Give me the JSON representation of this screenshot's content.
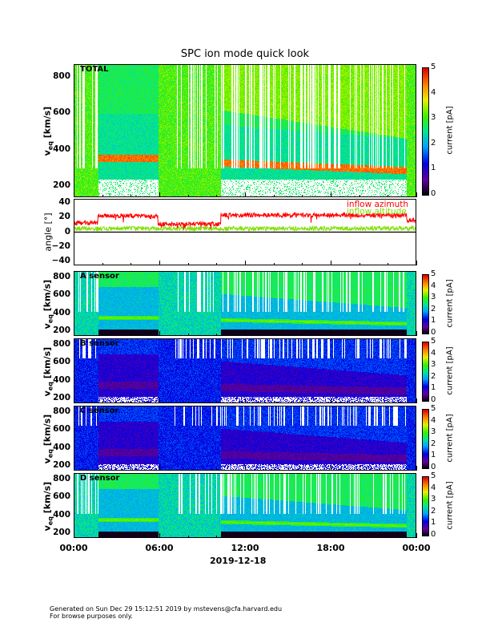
{
  "title": "SPC ion mode quick look",
  "date_label": "2019-12-18",
  "x_ticks": [
    "00:00",
    "06:00",
    "12:00",
    "18:00",
    "00:00"
  ],
  "footer": [
    "Generated on Sun Dec 29 15:12:51 2019 by mstevens@cfa.harvard.edu",
    "For browse purposes only."
  ],
  "colorbar": {
    "label": "current [pA]",
    "ticks": [
      "0",
      "1",
      "2",
      "3",
      "4",
      "5"
    ]
  },
  "chart_data": [
    {
      "type": "heatmap",
      "name": "TOTAL",
      "ylabel": "v_eq [km/s]",
      "ylabel_main": "v",
      "ylabel_sub": "eq",
      "ylabel_unit": "[km/s]",
      "yticks": [
        "200",
        "400",
        "600",
        "800"
      ],
      "ylim": [
        140,
        870
      ],
      "zlim": [
        0,
        5
      ],
      "style": "total"
    },
    {
      "type": "line",
      "name": "angle",
      "ylabel": "angle [°]",
      "yticks": [
        "40",
        "20",
        "0",
        "−20",
        "−40"
      ],
      "ylim": [
        -45,
        45
      ],
      "series": [
        {
          "name": "inflow azimuth",
          "color": "#ff0000",
          "segments": [
            [
              0,
              1.7,
              12
            ],
            [
              1.7,
              5.9,
              22
            ],
            [
              5.9,
              10.3,
              11
            ],
            [
              10.3,
              23.3,
              23
            ],
            [
              23.3,
              24,
              16
            ]
          ]
        },
        {
          "name": "inflow altitude",
          "color": "#80e000",
          "segments": [
            [
              0,
              24,
              5
            ]
          ]
        }
      ]
    },
    {
      "type": "heatmap",
      "name": "A sensor",
      "ylabel": "v_eq [km/s]",
      "yticks": [
        "200",
        "400",
        "600",
        "800"
      ],
      "ylim": [
        150,
        870
      ],
      "zlim": [
        0,
        5
      ],
      "style": "bright"
    },
    {
      "type": "heatmap",
      "name": "B sensor",
      "ylabel": "v_eq [km/s]",
      "yticks": [
        "200",
        "400",
        "600",
        "800"
      ],
      "ylim": [
        150,
        870
      ],
      "zlim": [
        0,
        5
      ],
      "style": "dark"
    },
    {
      "type": "heatmap",
      "name": "C sensor",
      "ylabel": "v_eq [km/s]",
      "yticks": [
        "200",
        "400",
        "600",
        "800"
      ],
      "ylim": [
        150,
        870
      ],
      "zlim": [
        0,
        5
      ],
      "style": "dark"
    },
    {
      "type": "heatmap",
      "name": "D sensor",
      "ylabel": "v_eq [km/s]",
      "yticks": [
        "200",
        "400",
        "600",
        "800"
      ],
      "ylim": [
        150,
        870
      ],
      "zlim": [
        0,
        5
      ],
      "style": "bright"
    }
  ]
}
